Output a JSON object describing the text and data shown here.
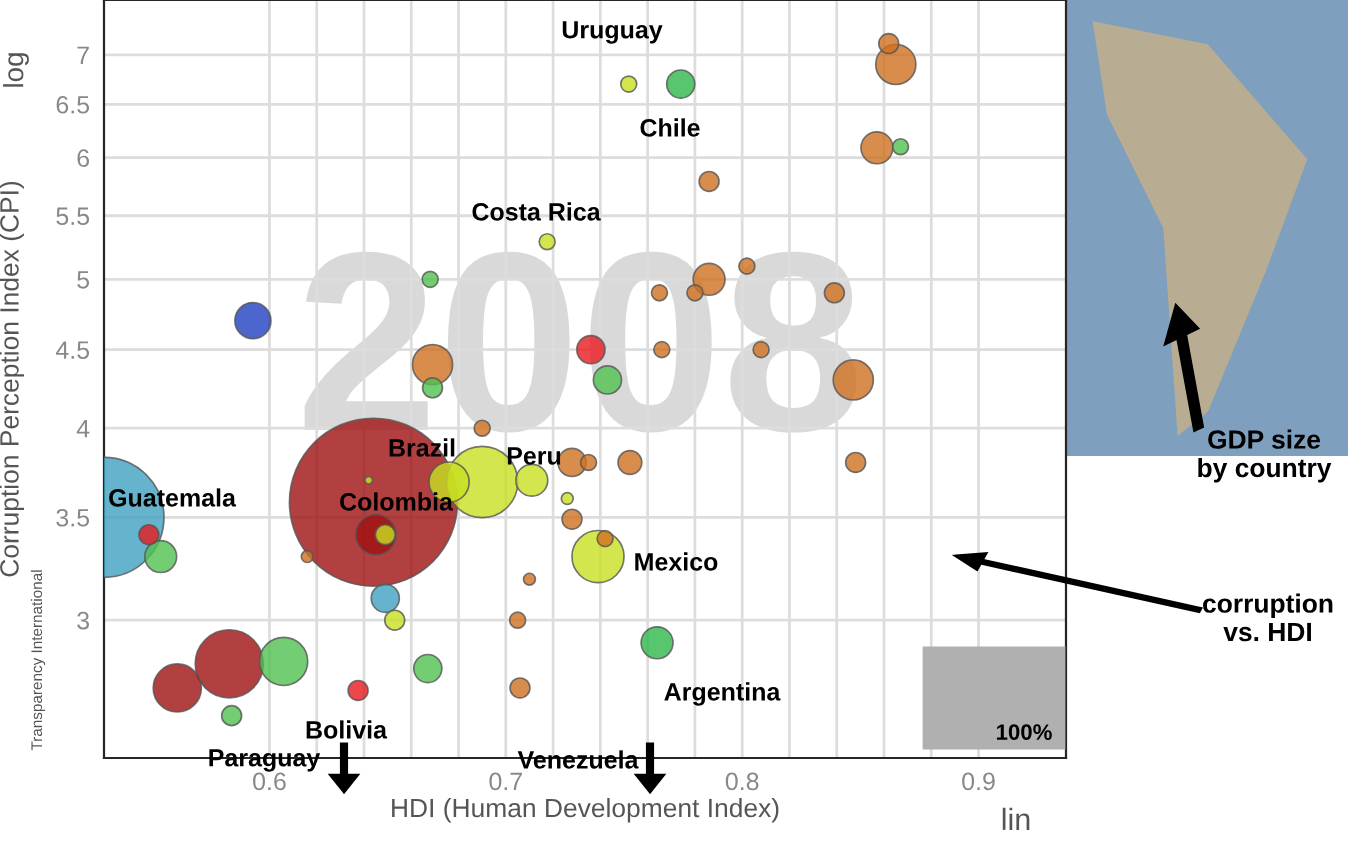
{
  "chart_data": {
    "type": "bubble",
    "xlabel": "HDI (Human Development Index)",
    "ylabel": "Corruption Perception Index (CPI)",
    "log": "y",
    "grid": true,
    "legend": false,
    "marker": "circle",
    "xlim": [
      0.53,
      0.937
    ],
    "ylim": [
      2.44,
      7.6
    ],
    "xticks": [
      0.6,
      {
        "value": 0.62,
        "label": null
      },
      {
        "value": 0.64,
        "label": null
      },
      {
        "value": 0.66,
        "label": null
      },
      {
        "value": 0.68,
        "label": null
      },
      0.7,
      {
        "value": 0.72,
        "label": null
      },
      {
        "value": 0.74,
        "label": null
      },
      {
        "value": 0.76,
        "label": null
      },
      {
        "value": 0.78,
        "label": null
      },
      0.8,
      {
        "value": 0.82,
        "label": null
      },
      {
        "value": 0.84,
        "label": null
      },
      {
        "value": 0.86,
        "label": null
      },
      {
        "value": 0.88,
        "label": null
      },
      0.9
    ],
    "yticks": [
      3,
      3.5,
      4,
      4.5,
      5,
      5.5,
      6,
      6.5,
      7
    ],
    "series": [
      {
        "color": "#c8e020",
        "x": [
          0.752,
          0.7175,
          0.69,
          0.711,
          0.676,
          0.649,
          0.642,
          0.653,
          0.739,
          0.726
        ],
        "values": [
          6.7,
          5.29,
          3.69,
          3.7,
          3.69,
          3.41,
          3.7,
          3.0,
          3.3,
          3.6
        ],
        "sizes": [
          0.009,
          0.009,
          0.18,
          0.036,
          0.057,
          0.014,
          0.002,
          0.014,
          0.096,
          0.005
        ]
      },
      {
        "color": "#2db84a",
        "x": [
          0.774,
          0.764
        ],
        "values": [
          6.7,
          2.9
        ],
        "sizes": [
          0.028,
          0.036
        ]
      },
      {
        "color": "#e8191e",
        "x": [
          0.549,
          0.6375,
          0.736
        ],
        "values": [
          3.41,
          2.7,
          4.5
        ],
        "sizes": [
          0.014,
          0.014,
          0.028
        ]
      },
      {
        "color": "#a01010",
        "x": [
          0.644,
          0.645,
          0.561,
          0.583
        ],
        "values": [
          3.58,
          3.41,
          2.71,
          2.81
        ],
        "sizes": [
          1,
          0.057,
          0.082,
          0.164
        ]
      },
      {
        "color": "#50c050",
        "x": [
          0.668,
          0.669,
          0.554,
          0.667,
          0.606,
          0.584,
          0.743,
          0.867
        ],
        "values": [
          5.0,
          4.25,
          3.3,
          2.79,
          2.82,
          2.6,
          4.3,
          6.1
        ],
        "sizes": [
          0.009,
          0.014,
          0.036,
          0.028,
          0.082,
          0.014,
          0.028,
          0.009
        ]
      },
      {
        "color": "#d07020",
        "x": [
          0.669,
          0.616,
          0.706,
          0.705,
          0.71,
          0.69,
          0.728,
          0.786,
          0.78,
          0.802,
          0.786,
          0.765,
          0.839,
          0.766,
          0.808,
          0.847,
          0.862,
          0.865,
          0.857,
          0.735,
          0.7525,
          0.848,
          0.728,
          0.742
        ],
        "values": [
          4.4,
          3.3,
          2.71,
          3.0,
          3.19,
          4.0,
          3.8,
          5.0,
          4.9,
          5.1,
          5.79,
          4.9,
          4.9,
          4.5,
          4.5,
          4.3,
          7.12,
          6.9,
          6.09,
          3.8,
          3.8,
          3.8,
          3.49,
          3.39
        ],
        "sizes": [
          0.057,
          0.005,
          0.014,
          0.009,
          0.005,
          0.009,
          0.028,
          0.036,
          0.009,
          0.009,
          0.014,
          0.009,
          0.014,
          0.009,
          0.009,
          0.057,
          0.014,
          0.057,
          0.036,
          0.009,
          0.02,
          0.014,
          0.014,
          0.009
        ]
      },
      {
        "color": "#2040c0",
        "x": [
          0.593
        ],
        "values": [
          4.7
        ],
        "sizes": [
          0.046
        ]
      },
      {
        "color": "#40a0c0",
        "x": [
          0.649,
          0.53
        ],
        "values": [
          3.1,
          3.5
        ],
        "sizes": [
          0.028,
          0.51
        ]
      }
    ],
    "annotations": [
      "2008",
      "Uruguay",
      "Chile",
      "Costa Rica",
      "Brazil",
      "Peru",
      "Colombia",
      "Guatemala",
      "Mexico",
      "Argentina",
      "Bolivia",
      "Paraguay",
      "Venezuela",
      "GDP size\nby country",
      "corruption\nvs. HDI",
      "Transparency International",
      "log",
      "lin",
      "100%"
    ]
  }
}
